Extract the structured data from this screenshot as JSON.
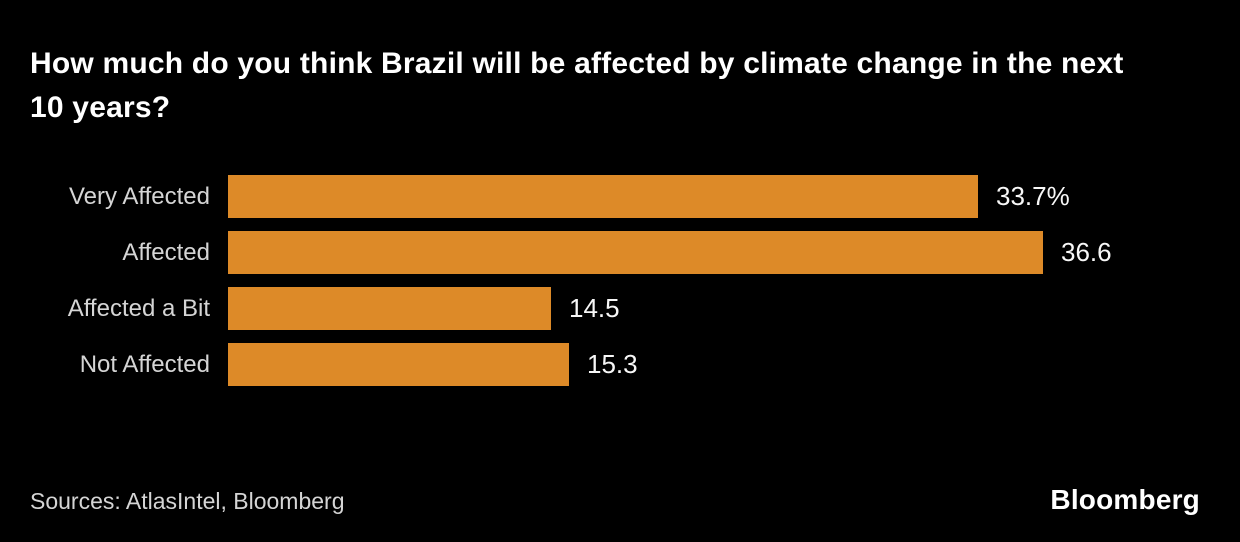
{
  "chart_data": {
    "type": "bar",
    "orientation": "horizontal",
    "title": "How much do you think Brazil will be affected by climate change in the next 10 years?",
    "categories": [
      "Very Affected",
      "Affected",
      "Affected a Bit",
      "Not Affected"
    ],
    "values": [
      33.7,
      36.6,
      14.5,
      15.3
    ],
    "value_labels": [
      "33.7%",
      "36.6",
      "14.5",
      "15.3"
    ],
    "xlim": [
      0,
      40
    ],
    "grid": false,
    "legend": false,
    "bar_color": "#dd8a28",
    "background_color": "#000000",
    "title_color": "#ffffff",
    "category_label_color": "#d5d5d5",
    "value_label_color": "#f7f7f7"
  },
  "footer": {
    "sources": "Sources: AtlasIntel, Bloomberg",
    "brand": "Bloomberg"
  }
}
